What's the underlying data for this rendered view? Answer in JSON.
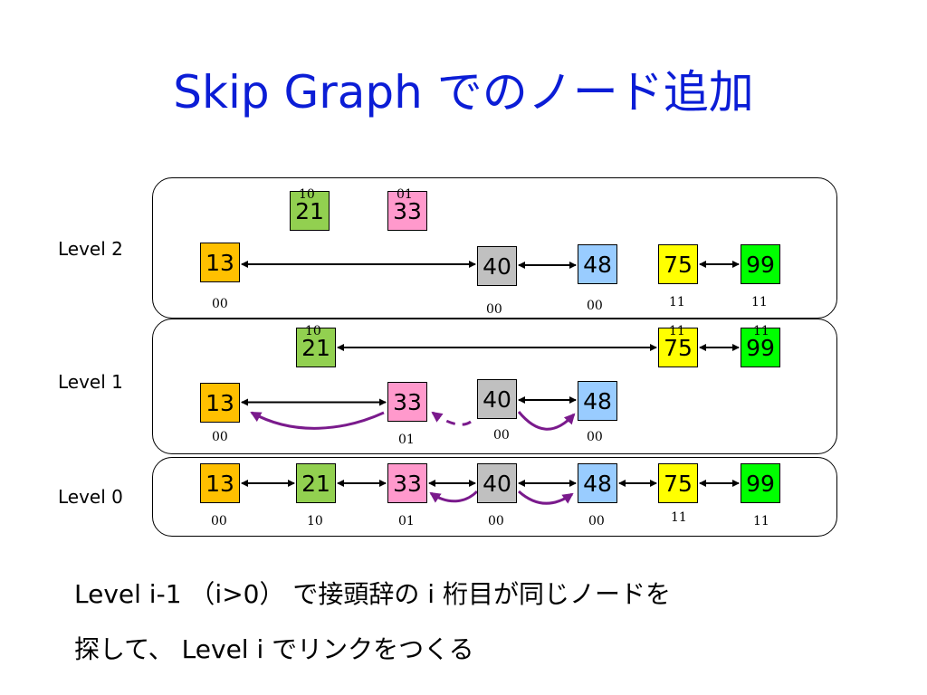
{
  "title": "Skip Graph でのノード追加",
  "levels": [
    {
      "label": "Level 2"
    },
    {
      "label": "Level 1"
    },
    {
      "label": "Level 0"
    }
  ],
  "nodes": [
    {
      "key": "13",
      "bits": "00",
      "color": "#ffc000"
    },
    {
      "key": "21",
      "bits": "10",
      "color": "#92d050"
    },
    {
      "key": "33",
      "bits": "01",
      "color": "#ff99cc"
    },
    {
      "key": "40",
      "bits": "00",
      "color": "#c0c0c0"
    },
    {
      "key": "48",
      "bits": "00",
      "color": "#99ccff"
    },
    {
      "key": "75",
      "bits": "11",
      "color": "#ffff00"
    },
    {
      "key": "99",
      "bits": "11",
      "color": "#00ff00"
    }
  ],
  "colors": {
    "title": "#0b1dd6",
    "curve": "#7a1a8c"
  },
  "caption": {
    "line1": "Level i-1 （i>0） で接頭辞の i 桁目が同じノードを",
    "line2": "探して、 Level i でリンクをつくる"
  }
}
